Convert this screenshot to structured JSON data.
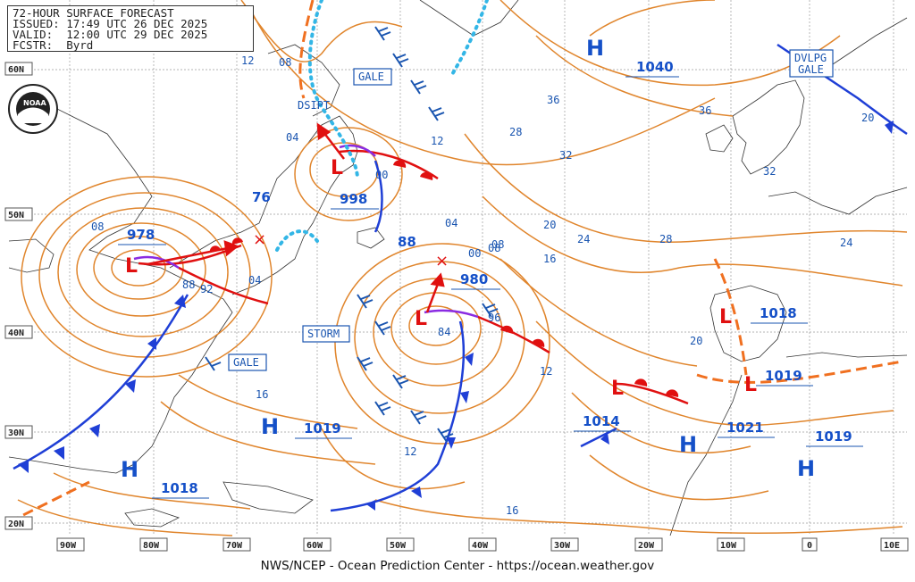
{
  "header": {
    "title_line": "72-HOUR SURFACE FORECAST",
    "issued_line": "ISSUED: 17:49 UTC 26 DEC 2025",
    "valid_line": "VALID:  12:00 UTC 29 DEC 2025",
    "fcstr_line": "FCSTR:  Byrd"
  },
  "footer": {
    "credit": "NWS/NCEP - Ocean Prediction Center - https://ocean.weather.gov"
  },
  "logo": {
    "text": "NOAA"
  },
  "axes": {
    "lat_labels": [
      "60N",
      "50N",
      "40N",
      "30N",
      "20N"
    ],
    "lon_labels": [
      "90W",
      "80W",
      "70W",
      "60W",
      "50W",
      "40W",
      "30W",
      "20W",
      "10W",
      "0",
      "10E"
    ]
  },
  "pressure_centers": [
    {
      "type": "H",
      "value": "1040"
    },
    {
      "type": "L",
      "value": "978"
    },
    {
      "type": "L",
      "value": "998"
    },
    {
      "type": "L",
      "value": "980"
    },
    {
      "type": "L",
      "value": "1014"
    },
    {
      "type": "L",
      "value": "1018"
    },
    {
      "type": "L",
      "value": "1019"
    },
    {
      "type": "H",
      "value": "1019"
    },
    {
      "type": "H",
      "value": "1018"
    },
    {
      "type": "H",
      "value": "1021"
    },
    {
      "type": "H",
      "value": "1019"
    },
    {
      "type": "L",
      "value": "76"
    },
    {
      "type": "L",
      "value": "88"
    }
  ],
  "warnings": {
    "gale_north": "GALE",
    "gale_west": "GALE",
    "storm": "STORM",
    "dsipt": "DSIPT",
    "dvlpg_line1": "DVLPG",
    "dvlpg_line2": "GALE"
  },
  "isobar_labels": [
    "12",
    "08",
    "04",
    "00",
    "36",
    "32",
    "28",
    "24",
    "20",
    "16",
    "12",
    "08",
    "04",
    "00",
    "36",
    "32",
    "28",
    "24",
    "20",
    "16",
    "12",
    "08",
    "04",
    "96",
    "92",
    "88",
    "84",
    "20",
    "16",
    "12",
    "08"
  ],
  "colors": {
    "isobar": "#e0852c",
    "text_blue": "#1a55b0",
    "cold_front": "#1f3fd6",
    "warm_front": "#e01010",
    "occluded": "#8a2be2",
    "trough": "#f07020",
    "ice": "#33b6e6"
  }
}
